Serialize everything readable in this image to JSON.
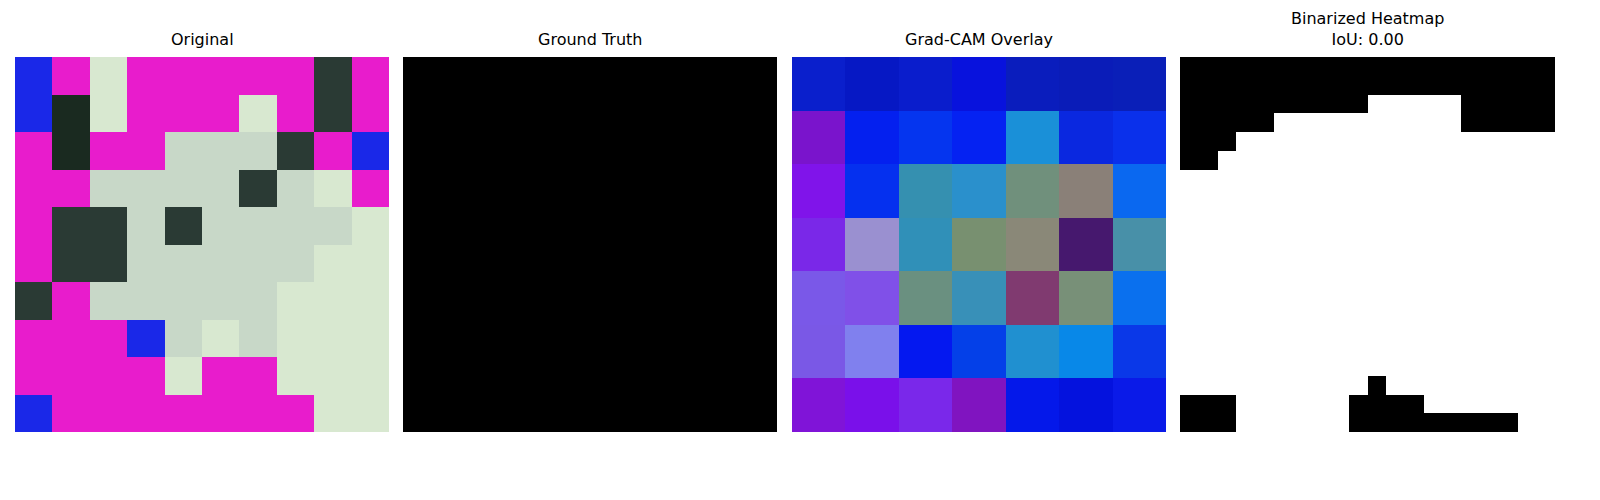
{
  "chart_data": [
    {
      "type": "image",
      "title": "Original",
      "tick_labels": false,
      "colors": [
        [
          "#1a28e8",
          "#e81ccc",
          "#d8e8d0",
          "#e81ccc",
          "#e81ccc",
          "#e81ccc",
          "#e81ccc",
          "#e81ccc",
          "#2a3a34",
          "#e81ccc"
        ],
        [
          "#1a28e8",
          "#1a2a20",
          "#d8e8d0",
          "#e81ccc",
          "#e81ccc",
          "#e81ccc",
          "#d8e8d0",
          "#e81ccc",
          "#2a3a34",
          "#e81ccc"
        ],
        [
          "#e81ccc",
          "#1a2a20",
          "#e81ccc",
          "#e81ccc",
          "#c8d8c8",
          "#c8d8c8",
          "#c8d8c8",
          "#2a3a34",
          "#e81ccc",
          "#1a28e8"
        ],
        [
          "#e81ccc",
          "#e81ccc",
          "#c8d8c8",
          "#c8d8c8",
          "#c8d8c8",
          "#c8d8c8",
          "#2a3a34",
          "#c8d8c8",
          "#d8e8d0",
          "#e81ccc"
        ],
        [
          "#e81ccc",
          "#2a3a34",
          "#2a3a34",
          "#c8d8c8",
          "#2a3a34",
          "#c8d8c8",
          "#c8d8c8",
          "#c8d8c8",
          "#c8d8c8",
          "#d8e8d0"
        ],
        [
          "#e81ccc",
          "#2a3a34",
          "#2a3a34",
          "#c8d8c8",
          "#c8d8c8",
          "#c8d8c8",
          "#c8d8c8",
          "#c8d8c8",
          "#d8e8d0",
          "#d8e8d0"
        ],
        [
          "#2a3a34",
          "#e81ccc",
          "#c8d8c8",
          "#c8d8c8",
          "#c8d8c8",
          "#c8d8c8",
          "#c8d8c8",
          "#d8e8d0",
          "#d8e8d0",
          "#d8e8d0"
        ],
        [
          "#e81ccc",
          "#e81ccc",
          "#e81ccc",
          "#1a28e8",
          "#c8d8c8",
          "#d8e8d0",
          "#c8d8c8",
          "#d8e8d0",
          "#d8e8d0",
          "#d8e8d0"
        ],
        [
          "#e81ccc",
          "#e81ccc",
          "#e81ccc",
          "#e81ccc",
          "#d8e8d0",
          "#e81ccc",
          "#e81ccc",
          "#d8e8d0",
          "#d8e8d0",
          "#d8e8d0"
        ],
        [
          "#1a28e8",
          "#e81ccc",
          "#e81ccc",
          "#e81ccc",
          "#e81ccc",
          "#e81ccc",
          "#e81ccc",
          "#e81ccc",
          "#d8e8d0",
          "#d8e8d0"
        ]
      ]
    },
    {
      "type": "heatmap",
      "title": "Ground Truth",
      "tick_labels": false,
      "cells": [
        [
          0
        ]
      ],
      "colors": [
        "#000000",
        "#ffffff"
      ]
    },
    {
      "type": "image",
      "title": "Grad-CAM Overlay",
      "tick_labels": false,
      "colors": [
        [
          "#0a1fcc",
          "#0618c4",
          "#0a1dcc",
          "#0812dd",
          "#0a1dbd",
          "#0a1cb8",
          "#0a1fb8"
        ],
        [
          "#7a14cc",
          "#0420ef",
          "#0535ef",
          "#0522f2",
          "#1a90d8",
          "#0a28e0",
          "#0a30eb"
        ],
        [
          "#8014ea",
          "#0530ef",
          "#3590b0",
          "#2a90cc",
          "#70907c",
          "#8a8078",
          "#0a68f0"
        ],
        [
          "#7a28e8",
          "#9a90d0",
          "#3090b8",
          "#789070",
          "#8a8878",
          "#46186e",
          "#4890a8"
        ],
        [
          "#7a58e8",
          "#8050e8",
          "#6a9080",
          "#3890b8",
          "#803a70",
          "#789078",
          "#0a70ee"
        ],
        [
          "#7a58e6",
          "#8080ee",
          "#0418f0",
          "#0440e8",
          "#2090d0",
          "#0888e8",
          "#0a38e8"
        ],
        [
          "#8014d8",
          "#7a10ea",
          "#7a28ea",
          "#8014c0",
          "#0418ea",
          "#0412de",
          "#0a1ae8"
        ]
      ]
    },
    {
      "type": "heatmap",
      "title": "Binarized Heatmap\nIoU: 0.00",
      "tick_labels": false,
      "colors": [
        "#000000",
        "#ffffff"
      ],
      "cells": [
        [
          0,
          0,
          0,
          0,
          0,
          0,
          0,
          0,
          0,
          0,
          0,
          0,
          0,
          0,
          0,
          0,
          0,
          0,
          0,
          0
        ],
        [
          0,
          0,
          0,
          0,
          0,
          0,
          0,
          0,
          0,
          0,
          0,
          0,
          0,
          0,
          0,
          0,
          0,
          0,
          0,
          0
        ],
        [
          0,
          0,
          0,
          0,
          0,
          0,
          0,
          0,
          0,
          0,
          1,
          1,
          1,
          1,
          1,
          0,
          0,
          0,
          0,
          0
        ],
        [
          0,
          0,
          0,
          0,
          0,
          1,
          1,
          1,
          1,
          1,
          1,
          1,
          1,
          1,
          1,
          0,
          0,
          0,
          0,
          0
        ],
        [
          0,
          0,
          0,
          1,
          1,
          1,
          1,
          1,
          1,
          1,
          1,
          1,
          1,
          1,
          1,
          1,
          1,
          1,
          1,
          1
        ],
        [
          0,
          0,
          1,
          1,
          1,
          1,
          1,
          1,
          1,
          1,
          1,
          1,
          1,
          1,
          1,
          1,
          1,
          1,
          1,
          1
        ],
        [
          1,
          1,
          1,
          1,
          1,
          1,
          1,
          1,
          1,
          1,
          1,
          1,
          1,
          1,
          1,
          1,
          1,
          1,
          1,
          1
        ],
        [
          1,
          1,
          1,
          1,
          1,
          1,
          1,
          1,
          1,
          1,
          1,
          1,
          1,
          1,
          1,
          1,
          1,
          1,
          1,
          1
        ],
        [
          1,
          1,
          1,
          1,
          1,
          1,
          1,
          1,
          1,
          1,
          1,
          1,
          1,
          1,
          1,
          1,
          1,
          1,
          1,
          1
        ],
        [
          1,
          1,
          1,
          1,
          1,
          1,
          1,
          1,
          1,
          1,
          1,
          1,
          1,
          1,
          1,
          1,
          1,
          1,
          1,
          1
        ],
        [
          1,
          1,
          1,
          1,
          1,
          1,
          1,
          1,
          1,
          1,
          1,
          1,
          1,
          1,
          1,
          1,
          1,
          1,
          1,
          1
        ],
        [
          1,
          1,
          1,
          1,
          1,
          1,
          1,
          1,
          1,
          1,
          1,
          1,
          1,
          1,
          1,
          1,
          1,
          1,
          1,
          1
        ],
        [
          1,
          1,
          1,
          1,
          1,
          1,
          1,
          1,
          1,
          1,
          1,
          1,
          1,
          1,
          1,
          1,
          1,
          1,
          1,
          1
        ],
        [
          1,
          1,
          1,
          1,
          1,
          1,
          1,
          1,
          1,
          1,
          1,
          1,
          1,
          1,
          1,
          1,
          1,
          1,
          1,
          1
        ],
        [
          1,
          1,
          1,
          1,
          1,
          1,
          1,
          1,
          1,
          1,
          1,
          1,
          1,
          1,
          1,
          1,
          1,
          1,
          1,
          1
        ],
        [
          1,
          1,
          1,
          1,
          1,
          1,
          1,
          1,
          1,
          1,
          1,
          1,
          1,
          1,
          1,
          1,
          1,
          1,
          1,
          1
        ],
        [
          1,
          1,
          1,
          1,
          1,
          1,
          1,
          1,
          1,
          1,
          1,
          1,
          1,
          1,
          1,
          1,
          1,
          1,
          1,
          1
        ],
        [
          1,
          1,
          1,
          1,
          1,
          1,
          1,
          1,
          1,
          1,
          0,
          1,
          1,
          1,
          1,
          1,
          1,
          1,
          1,
          1
        ],
        [
          0,
          0,
          0,
          1,
          1,
          1,
          1,
          1,
          1,
          0,
          0,
          0,
          0,
          1,
          1,
          1,
          1,
          1,
          1,
          1
        ],
        [
          0,
          0,
          0,
          1,
          1,
          1,
          1,
          1,
          1,
          0,
          0,
          0,
          0,
          0,
          0,
          0,
          0,
          0,
          1,
          1
        ]
      ]
    }
  ]
}
